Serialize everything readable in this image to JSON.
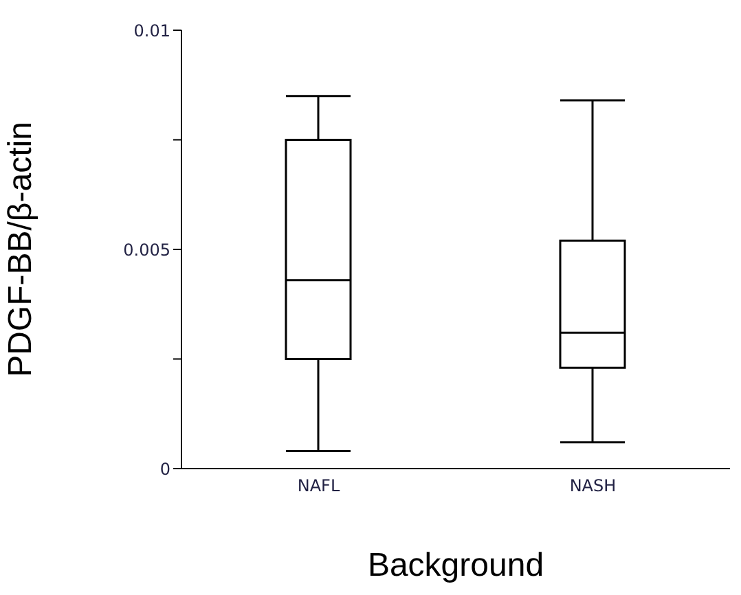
{
  "chart_data": {
    "type": "box",
    "xlabel": "Background",
    "ylabel": "PDGF-BB/β-actin",
    "categories": [
      "NAFL",
      "NASH"
    ],
    "boxes": [
      {
        "low": 0.0004,
        "q1": 0.0025,
        "median": 0.0043,
        "q3": 0.0075,
        "high": 0.0085
      },
      {
        "low": 0.0006,
        "q1": 0.0023,
        "median": 0.0031,
        "q3": 0.0052,
        "high": 0.0084
      }
    ],
    "color": "#000000",
    "ylim": [
      0,
      0.01
    ],
    "yticks": [
      0,
      {
        "value": 0.0025,
        "label": null
      },
      0.005,
      {
        "value": 0.0075,
        "label": null
      },
      0.01
    ],
    "grid": false,
    "legend": false
  }
}
